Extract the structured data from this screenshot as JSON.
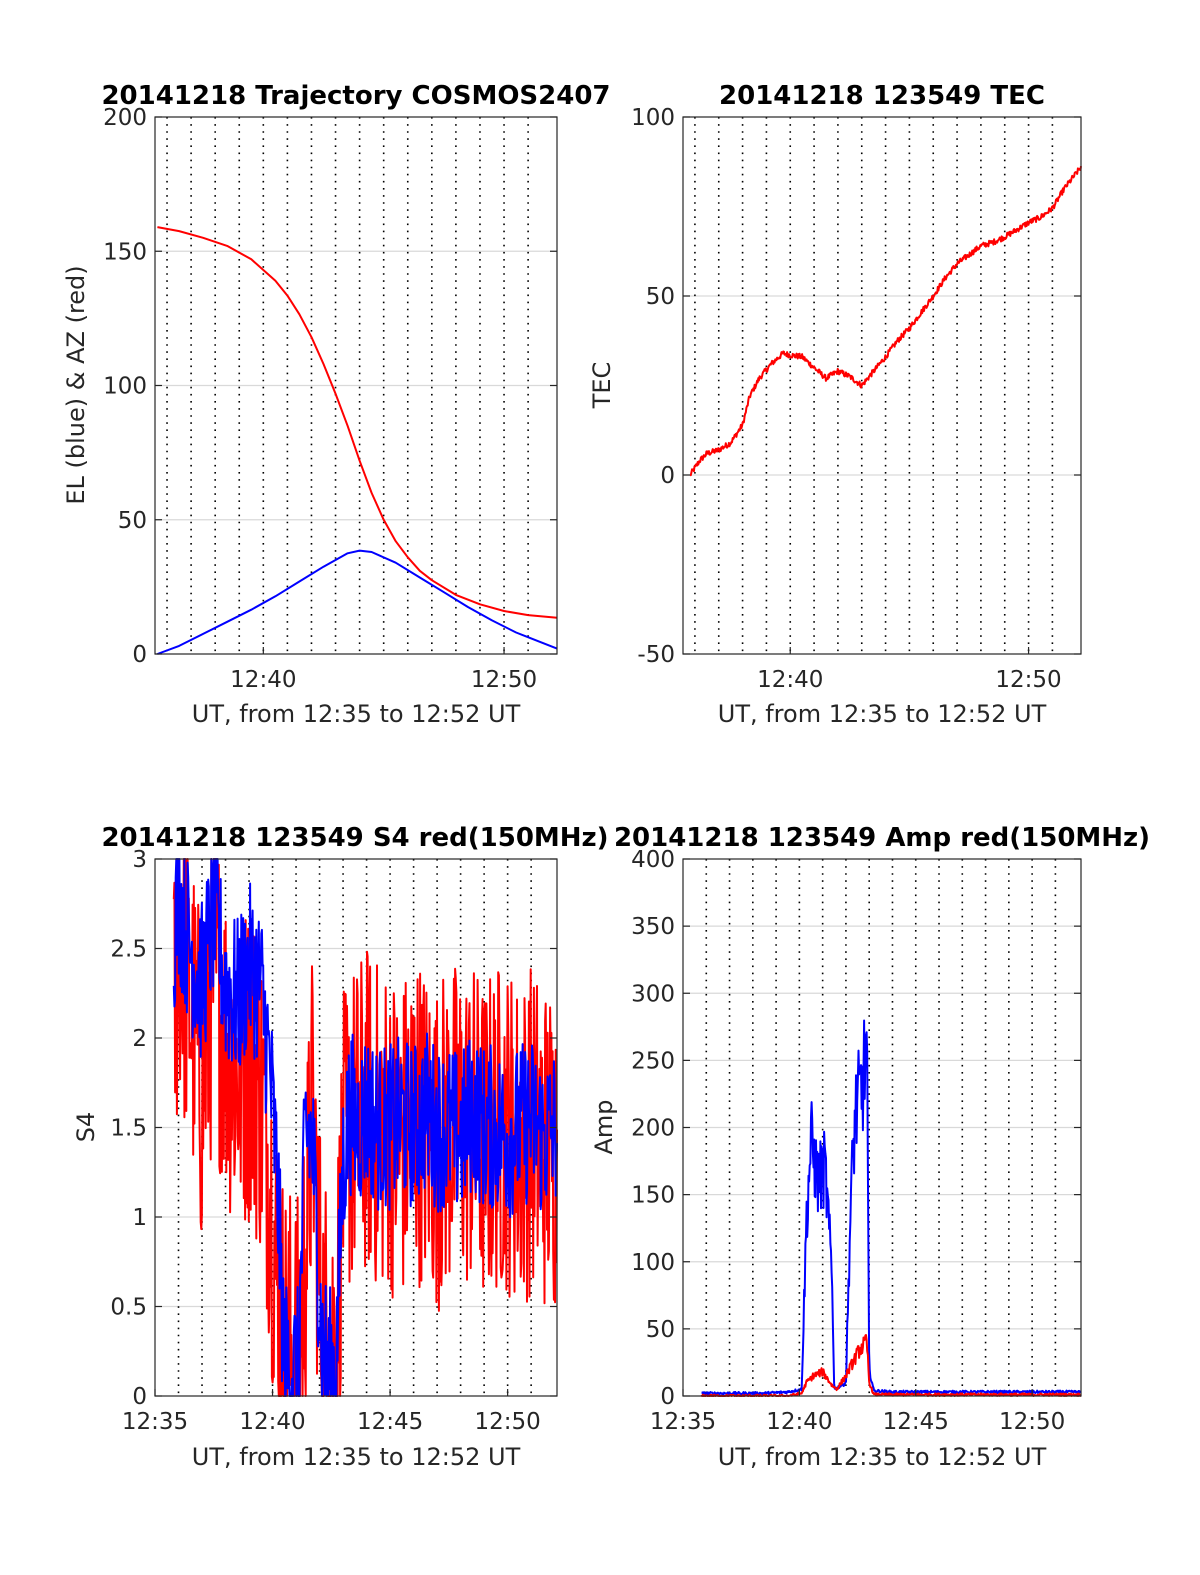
{
  "chart_data": [
    {
      "type": "line",
      "title": "20141218 Trajectory COSMOS2407",
      "xlabel": "UT, from 12:35 to 12:52 UT",
      "ylabel": "EL (blue) & AZ (red)",
      "xlim_minutes": [
        35.5,
        52.2
      ],
      "ylim": [
        0,
        200
      ],
      "xticks": [
        {
          "v": 40,
          "label": "12:40"
        },
        {
          "v": 50,
          "label": "12:50"
        }
      ],
      "yticks": [
        {
          "v": 0,
          "label": "0"
        },
        {
          "v": 50,
          "label": "50"
        },
        {
          "v": 100,
          "label": "100"
        },
        {
          "v": 150,
          "label": "150"
        },
        {
          "v": 200,
          "label": "200"
        }
      ],
      "grid": true,
      "vlines_minutes": [
        36,
        37,
        38,
        39,
        40,
        41,
        42,
        43,
        44,
        45,
        46,
        47,
        48,
        49,
        50,
        51
      ],
      "series": [
        {
          "color": "#ff0000",
          "noise": 0,
          "x": [
            35.6,
            36.5,
            37.5,
            38.5,
            39.5,
            40.5,
            41,
            41.5,
            42,
            42.5,
            43,
            43.5,
            44,
            44.5,
            45,
            45.5,
            46,
            46.5,
            47,
            48,
            49,
            50,
            51,
            52.2
          ],
          "y": [
            159,
            157.5,
            155,
            152,
            147,
            139,
            133.5,
            126.5,
            118,
            108,
            97,
            85,
            72,
            60,
            50,
            42,
            36,
            31,
            27.5,
            22,
            18.5,
            16,
            14.5,
            13.5
          ]
        },
        {
          "color": "#0000ff",
          "noise": 0,
          "x": [
            35.6,
            36.5,
            37.5,
            38.5,
            39.5,
            40.5,
            41.5,
            42.5,
            43.5,
            44,
            44.5,
            45.5,
            46.5,
            47.5,
            48.5,
            49.5,
            50.5,
            51.5,
            52.2
          ],
          "y": [
            0,
            3,
            7.5,
            12,
            16.5,
            21.5,
            27,
            32.5,
            37.5,
            38.5,
            38,
            34,
            28.5,
            23,
            17.5,
            12.5,
            8,
            4.5,
            2
          ]
        }
      ]
    },
    {
      "type": "line",
      "title": "20141218 123549 TEC",
      "xlabel": "UT, from 12:35 to 12:52 UT",
      "ylabel": "TEC",
      "xlim_minutes": [
        35.5,
        52.2
      ],
      "ylim": [
        -50,
        100
      ],
      "xticks": [
        {
          "v": 40,
          "label": "12:40"
        },
        {
          "v": 50,
          "label": "12:50"
        }
      ],
      "yticks": [
        {
          "v": -50,
          "label": "-50"
        },
        {
          "v": 0,
          "label": "0"
        },
        {
          "v": 50,
          "label": "50"
        },
        {
          "v": 100,
          "label": "100"
        }
      ],
      "grid": true,
      "vlines_minutes": [
        36,
        37,
        38,
        39,
        40,
        41,
        42,
        43,
        44,
        45,
        46,
        47,
        48,
        49,
        50,
        51
      ],
      "series": [
        {
          "color": "#ff0000",
          "noise": 0.6,
          "x": [
            35.8,
            36.2,
            36.5,
            37,
            37.5,
            38,
            38.3,
            38.7,
            39.2,
            39.7,
            40,
            40.5,
            41,
            41.5,
            42,
            42.5,
            43,
            43.5,
            44,
            44.5,
            45,
            45.5,
            46,
            46.5,
            47,
            47.5,
            48,
            48.5,
            49,
            49.5,
            50,
            50.5,
            51,
            51.5,
            52.2
          ],
          "y": [
            0,
            4,
            6,
            7,
            9,
            14,
            22,
            27,
            31,
            34,
            33.5,
            33,
            30,
            27,
            29,
            27.5,
            25,
            29,
            33,
            37.5,
            41,
            45.5,
            50,
            55,
            59,
            61.5,
            64,
            65,
            66.5,
            68.5,
            70.5,
            72,
            74.5,
            80,
            86
          ]
        }
      ]
    },
    {
      "type": "line",
      "title": "20141218 123549 S4 red(150MHz)",
      "xlabel": "UT, from 12:35 to 12:52 UT",
      "ylabel": "S4",
      "xlim_minutes": [
        35,
        52.1
      ],
      "ylim": [
        0,
        3
      ],
      "xticks": [
        {
          "v": 35,
          "label": "12:35"
        },
        {
          "v": 40,
          "label": "12:40"
        },
        {
          "v": 45,
          "label": "12:45"
        },
        {
          "v": 50,
          "label": "12:50"
        }
      ],
      "yticks": [
        {
          "v": 0,
          "label": "0"
        },
        {
          "v": 0.5,
          "label": "0.5"
        },
        {
          "v": 1,
          "label": "1"
        },
        {
          "v": 1.5,
          "label": "1.5"
        },
        {
          "v": 2,
          "label": "2"
        },
        {
          "v": 2.5,
          "label": "2.5"
        },
        {
          "v": 3,
          "label": "3"
        }
      ],
      "grid": true,
      "vlines_minutes": [
        36,
        37,
        38,
        39,
        40,
        41,
        42,
        43,
        44,
        45,
        46,
        47,
        48,
        49,
        50,
        51
      ],
      "series": [
        {
          "color": "#ff0000",
          "noise": 0.9,
          "x": [
            35.8,
            36,
            36.5,
            37,
            37.5,
            38,
            38.5,
            39,
            39.5,
            39.9,
            40.2,
            40.5,
            40.8,
            41.1,
            41.4,
            41.7,
            42.1,
            42.4,
            42.7,
            43,
            43.3,
            43.6,
            44,
            44.5,
            45,
            45.5,
            46,
            46.5,
            47,
            47.5,
            48,
            48.5,
            49,
            49.5,
            50,
            50.5,
            51,
            51.5,
            52.1
          ],
          "y": [
            2,
            2.6,
            2.2,
            1.7,
            2.4,
            2.0,
            1.8,
            1.9,
            1.7,
            1.2,
            0.6,
            0.3,
            0.25,
            0.2,
            0.8,
            1.6,
            0.4,
            0.3,
            0.3,
            1.3,
            1.5,
            1.5,
            1.6,
            1.5,
            1.5,
            1.4,
            1.6,
            1.5,
            1.4,
            1.5,
            1.5,
            1.5,
            1.4,
            1.5,
            1.5,
            1.4,
            1.5,
            1.4,
            1.4
          ]
        },
        {
          "color": "#0000ff",
          "noise": 0.45,
          "x": [
            35.8,
            36,
            36.5,
            37,
            37.5,
            38,
            38.5,
            39,
            39.5,
            39.9,
            40.2,
            40.5,
            40.8,
            41.1,
            41.4,
            41.7,
            42.1,
            42.4,
            42.7,
            43,
            43.3,
            43.6,
            44,
            44.5,
            45,
            45.5,
            46,
            46.5,
            47,
            47.5,
            48,
            48.5,
            49,
            49.5,
            50,
            50.5,
            51,
            51.5,
            52.1
          ],
          "y": [
            2.6,
            2.8,
            2.5,
            2.3,
            2.7,
            2.3,
            2.2,
            2.4,
            2.3,
            1.8,
            1.2,
            0.2,
            0.15,
            0.15,
            1.5,
            1.4,
            0.3,
            0.15,
            0.15,
            1.3,
            1.6,
            1.5,
            1.6,
            1.5,
            1.5,
            1.55,
            1.5,
            1.6,
            1.5,
            1.5,
            1.45,
            1.6,
            1.5,
            1.5,
            1.45,
            1.5,
            1.55,
            1.45,
            1.5
          ]
        }
      ]
    },
    {
      "type": "line",
      "title": "20141218 123549 Amp red(150MHz)",
      "xlabel": "UT, from 12:35 to 12:52 UT",
      "ylabel": "Amp",
      "xlim_minutes": [
        35,
        52.1
      ],
      "ylim": [
        0,
        400
      ],
      "xticks": [
        {
          "v": 35,
          "label": "12:35"
        },
        {
          "v": 40,
          "label": "12:40"
        },
        {
          "v": 45,
          "label": "12:45"
        },
        {
          "v": 50,
          "label": "12:50"
        }
      ],
      "yticks": [
        {
          "v": 0,
          "label": "0"
        },
        {
          "v": 50,
          "label": "50"
        },
        {
          "v": 100,
          "label": "100"
        },
        {
          "v": 150,
          "label": "150"
        },
        {
          "v": 200,
          "label": "200"
        },
        {
          "v": 250,
          "label": "250"
        },
        {
          "v": 300,
          "label": "300"
        },
        {
          "v": 350,
          "label": "350"
        },
        {
          "v": 400,
          "label": "400"
        }
      ],
      "grid": true,
      "vlines_minutes": [
        36,
        37,
        38,
        39,
        40,
        41,
        42,
        43,
        44,
        45,
        46,
        47,
        48,
        49,
        50,
        51
      ],
      "series": [
        {
          "color": "#0000ff",
          "noise": 0.5,
          "x": [
            35.8,
            36.5,
            37.5,
            38.5,
            39.5,
            40.1,
            40.3,
            40.5,
            40.8,
            41.1,
            41.4,
            41.5,
            41.8,
            42,
            42.2,
            42.4,
            42.7,
            42.9,
            43,
            43.2,
            44,
            45,
            46,
            47,
            48,
            49,
            50,
            51,
            52.1
          ],
          "y": [
            2,
            2,
            2,
            2,
            3,
            5,
            130,
            190,
            160,
            170,
            90,
            5,
            8,
            10,
            140,
            210,
            230,
            260,
            20,
            4,
            3,
            3,
            3,
            3,
            3,
            3,
            3,
            3,
            3
          ]
        },
        {
          "color": "#ff0000",
          "noise": 0.5,
          "x": [
            35.8,
            39.5,
            40.1,
            40.3,
            40.6,
            41,
            41.4,
            41.6,
            42,
            42.3,
            42.6,
            42.9,
            43,
            43.2,
            52.1
          ],
          "y": [
            0,
            0,
            2,
            10,
            15,
            18,
            8,
            5,
            15,
            25,
            35,
            40,
            10,
            1,
            1
          ]
        }
      ]
    }
  ]
}
